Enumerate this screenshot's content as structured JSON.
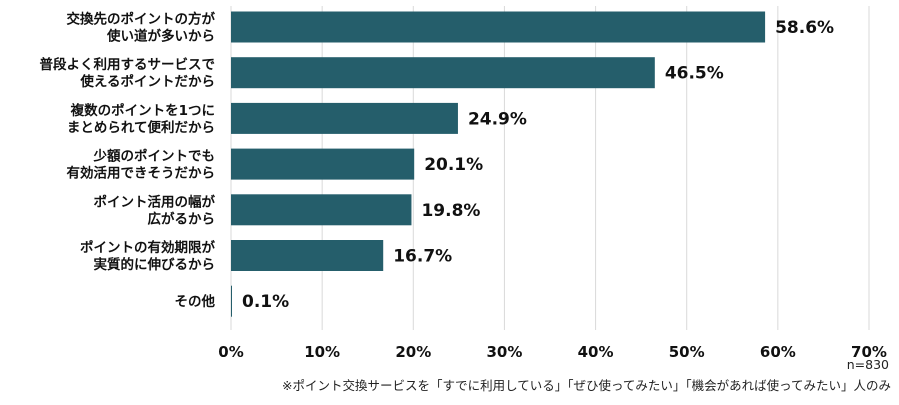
{
  "chart_data": {
    "type": "bar",
    "orientation": "horizontal",
    "categories": [
      [
        "交換先のポイントの方が",
        "使い道が多いから"
      ],
      [
        "普段よく利用するサービスで",
        "使えるポイントだから"
      ],
      [
        "複数のポイントを1つに",
        "まとめられて便利だから"
      ],
      [
        "少額のポイントでも",
        "有効活用できそうだから"
      ],
      [
        "ポイント活用の幅が",
        "広がるから"
      ],
      [
        "ポイントの有効期限が",
        "実質的に伸びるから"
      ],
      [
        "その他"
      ]
    ],
    "values": [
      58.6,
      46.5,
      24.9,
      20.1,
      19.8,
      16.7,
      0.1
    ],
    "value_labels": [
      "58.6%",
      "46.5%",
      "24.9%",
      "20.1%",
      "19.8%",
      "16.7%",
      "0.1%"
    ],
    "xlim": [
      0,
      70
    ],
    "x_ticks": [
      0,
      10,
      20,
      30,
      40,
      50,
      60,
      70
    ],
    "x_tick_labels": [
      "0%",
      "10%",
      "20%",
      "30%",
      "40%",
      "50%",
      "60%",
      "70%"
    ],
    "grid": true,
    "bar_color": "#255e6b",
    "grid_color": "#d9d9d9"
  },
  "notes": {
    "sample_size": "n=830",
    "footnote": "※ポイント交換サービスを「すでに利用している」「ぜひ使ってみたい」「機会があれば使ってみたい」人のみ"
  }
}
